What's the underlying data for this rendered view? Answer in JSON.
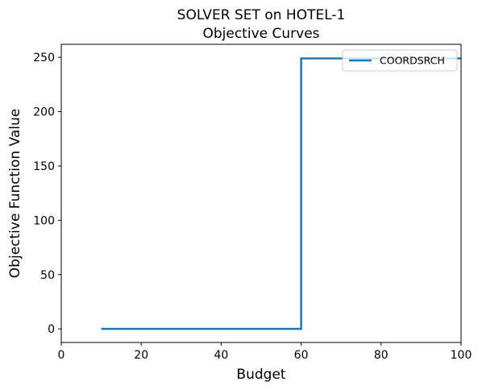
{
  "chart_data": {
    "type": "line",
    "title_line1": "SOLVER SET on HOTEL-1",
    "title_line2": "Objective Curves",
    "xlabel": "Budget",
    "ylabel": "Objective Function Value",
    "xlim": [
      0,
      100
    ],
    "ylim": [
      -12.5,
      262
    ],
    "xticks": [
      0,
      20,
      40,
      60,
      80,
      100
    ],
    "yticks": [
      0,
      50,
      100,
      150,
      200,
      250
    ],
    "grid": false,
    "legend_position": "top-right",
    "series": [
      {
        "name": "COORDSRCH",
        "color": "#1f77b4",
        "x": [
          10,
          60,
          60,
          100
        ],
        "y": [
          0,
          0,
          249,
          249
        ]
      }
    ]
  }
}
